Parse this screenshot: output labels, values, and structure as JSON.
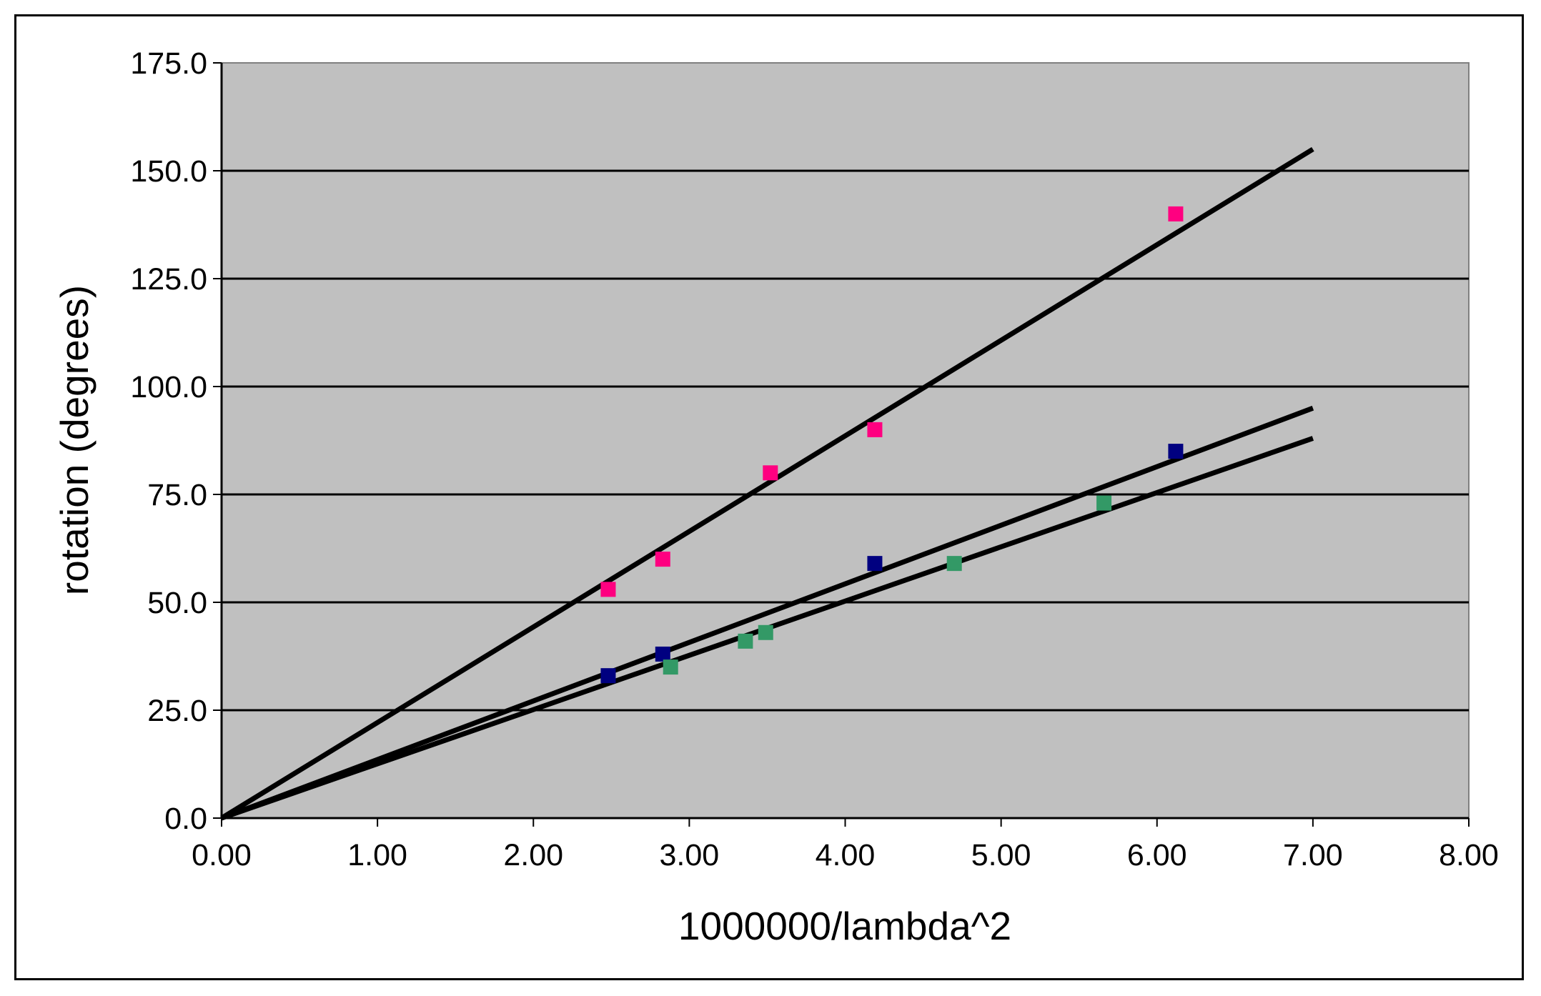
{
  "chart_data": {
    "type": "scatter",
    "title": "",
    "xlabel": "1000000/lambda^2",
    "ylabel": "rotation (degrees)",
    "xlim": [
      0,
      8
    ],
    "ylim": [
      0,
      175
    ],
    "x_ticks": [
      "0.00",
      "1.00",
      "2.00",
      "3.00",
      "4.00",
      "5.00",
      "6.00",
      "7.00",
      "8.00"
    ],
    "y_ticks": [
      "0.0",
      "25.0",
      "50.0",
      "75.0",
      "100.0",
      "125.0",
      "150.0",
      "175.0"
    ],
    "grid": "horizontal",
    "plot_background": "#c0c0c0",
    "legend": "none",
    "series": [
      {
        "color": "#ff0080",
        "marker": "square",
        "points": [
          [
            2.48,
            53
          ],
          [
            2.83,
            60
          ],
          [
            3.52,
            80
          ],
          [
            4.19,
            90
          ],
          [
            6.12,
            140
          ]
        ],
        "trendline": {
          "x": [
            0,
            7
          ],
          "y": [
            0,
            155
          ]
        }
      },
      {
        "color": "#000080",
        "marker": "square",
        "points": [
          [
            2.48,
            33
          ],
          [
            2.83,
            38
          ],
          [
            4.19,
            59
          ],
          [
            6.12,
            85
          ]
        ],
        "trendline": {
          "x": [
            0,
            7
          ],
          "y": [
            0,
            95
          ]
        }
      },
      {
        "color": "#339966",
        "marker": "square",
        "points": [
          [
            2.88,
            35
          ],
          [
            3.36,
            41
          ],
          [
            3.49,
            43
          ],
          [
            4.7,
            59
          ],
          [
            5.66,
            73
          ]
        ],
        "trendline": {
          "x": [
            0,
            7
          ],
          "y": [
            0,
            88
          ]
        }
      }
    ]
  }
}
